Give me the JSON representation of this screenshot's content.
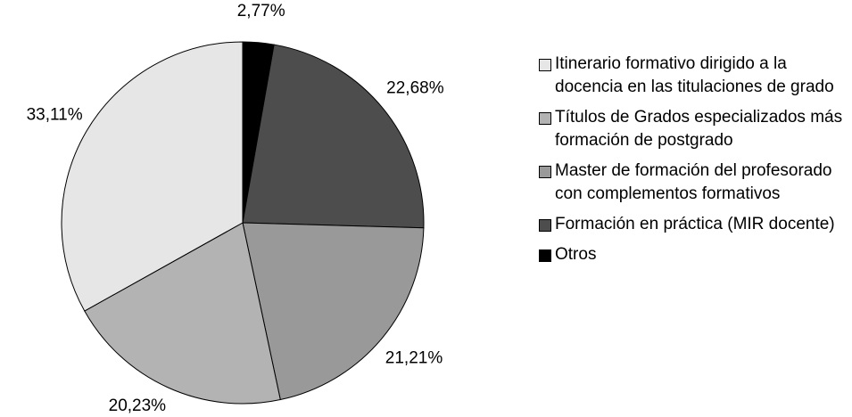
{
  "chart_data": {
    "type": "pie",
    "categories": [
      "Itinerario formativo dirigido a la docencia en las titulaciones de grado",
      "Títulos de Grados especializados más formación de postgrado",
      "Master de formación del profesorado con complementos formativos",
      "Formación en práctica (MIR docente)",
      "Otros"
    ],
    "values": [
      33.11,
      20.23,
      21.21,
      22.68,
      2.77
    ],
    "value_labels": [
      "33,11%",
      "20,23%",
      "21,21%",
      "22,68%",
      "2,77%"
    ],
    "colors": [
      "#e6e6e6",
      "#b3b3b3",
      "#999999",
      "#4d4d4d",
      "#000000"
    ],
    "legend": "right"
  }
}
